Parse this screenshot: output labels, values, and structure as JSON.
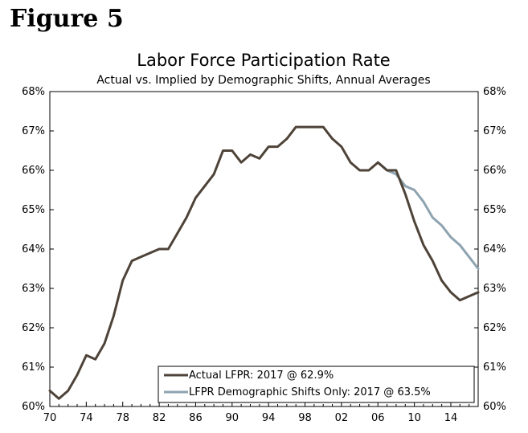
{
  "figure_label": "Figure 5",
  "chart_data": {
    "type": "line",
    "title": "Labor Force Participation Rate",
    "subtitle": "Actual vs. Implied by Demographic Shifts, Annual Averages",
    "xlabel": "",
    "ylabel": "",
    "xlim": [
      1970,
      2017
    ],
    "ylim": [
      60,
      68
    ],
    "x_ticks": [
      1970,
      1974,
      1978,
      1982,
      1986,
      1990,
      1994,
      1998,
      2002,
      2006,
      2010,
      2014
    ],
    "x_tick_labels": [
      "70",
      "74",
      "78",
      "82",
      "86",
      "90",
      "94",
      "98",
      "02",
      "06",
      "10",
      "14"
    ],
    "y_ticks": [
      60,
      61,
      62,
      63,
      64,
      65,
      66,
      67,
      68
    ],
    "y_tick_labels": [
      "60%",
      "61%",
      "62%",
      "63%",
      "64%",
      "65%",
      "66%",
      "67%",
      "68%"
    ],
    "grid": false,
    "legend_position": "bottom-right",
    "series": [
      {
        "name": "Actual LFPR: 2017 @ 62.9%",
        "color": "#4e4338",
        "x": [
          1970,
          1971,
          1972,
          1973,
          1974,
          1975,
          1976,
          1977,
          1978,
          1979,
          1980,
          1981,
          1982,
          1983,
          1984,
          1985,
          1986,
          1987,
          1988,
          1989,
          1990,
          1991,
          1992,
          1993,
          1994,
          1995,
          1996,
          1997,
          1998,
          1999,
          2000,
          2001,
          2002,
          2003,
          2004,
          2005,
          2006,
          2007,
          2008,
          2009,
          2010,
          2011,
          2012,
          2013,
          2014,
          2015,
          2016,
          2017
        ],
        "values": [
          60.4,
          60.2,
          60.4,
          60.8,
          61.3,
          61.2,
          61.6,
          62.3,
          63.2,
          63.7,
          63.8,
          63.9,
          64.0,
          64.0,
          64.4,
          64.8,
          65.3,
          65.6,
          65.9,
          66.5,
          66.5,
          66.2,
          66.4,
          66.3,
          66.6,
          66.6,
          66.8,
          67.1,
          67.1,
          67.1,
          67.1,
          66.8,
          66.6,
          66.2,
          66.0,
          66.0,
          66.2,
          66.0,
          66.0,
          65.4,
          64.7,
          64.1,
          63.7,
          63.2,
          62.9,
          62.7,
          62.8,
          62.9
        ]
      },
      {
        "name": "LFPR Demographic Shifts Only: 2017 @ 63.5%",
        "color": "#8ea3b0",
        "x": [
          2006,
          2007,
          2008,
          2009,
          2010,
          2011,
          2012,
          2013,
          2014,
          2015,
          2016,
          2017
        ],
        "values": [
          66.2,
          66.0,
          65.9,
          65.6,
          65.5,
          65.2,
          64.8,
          64.6,
          64.3,
          64.1,
          63.8,
          63.5
        ]
      }
    ]
  }
}
